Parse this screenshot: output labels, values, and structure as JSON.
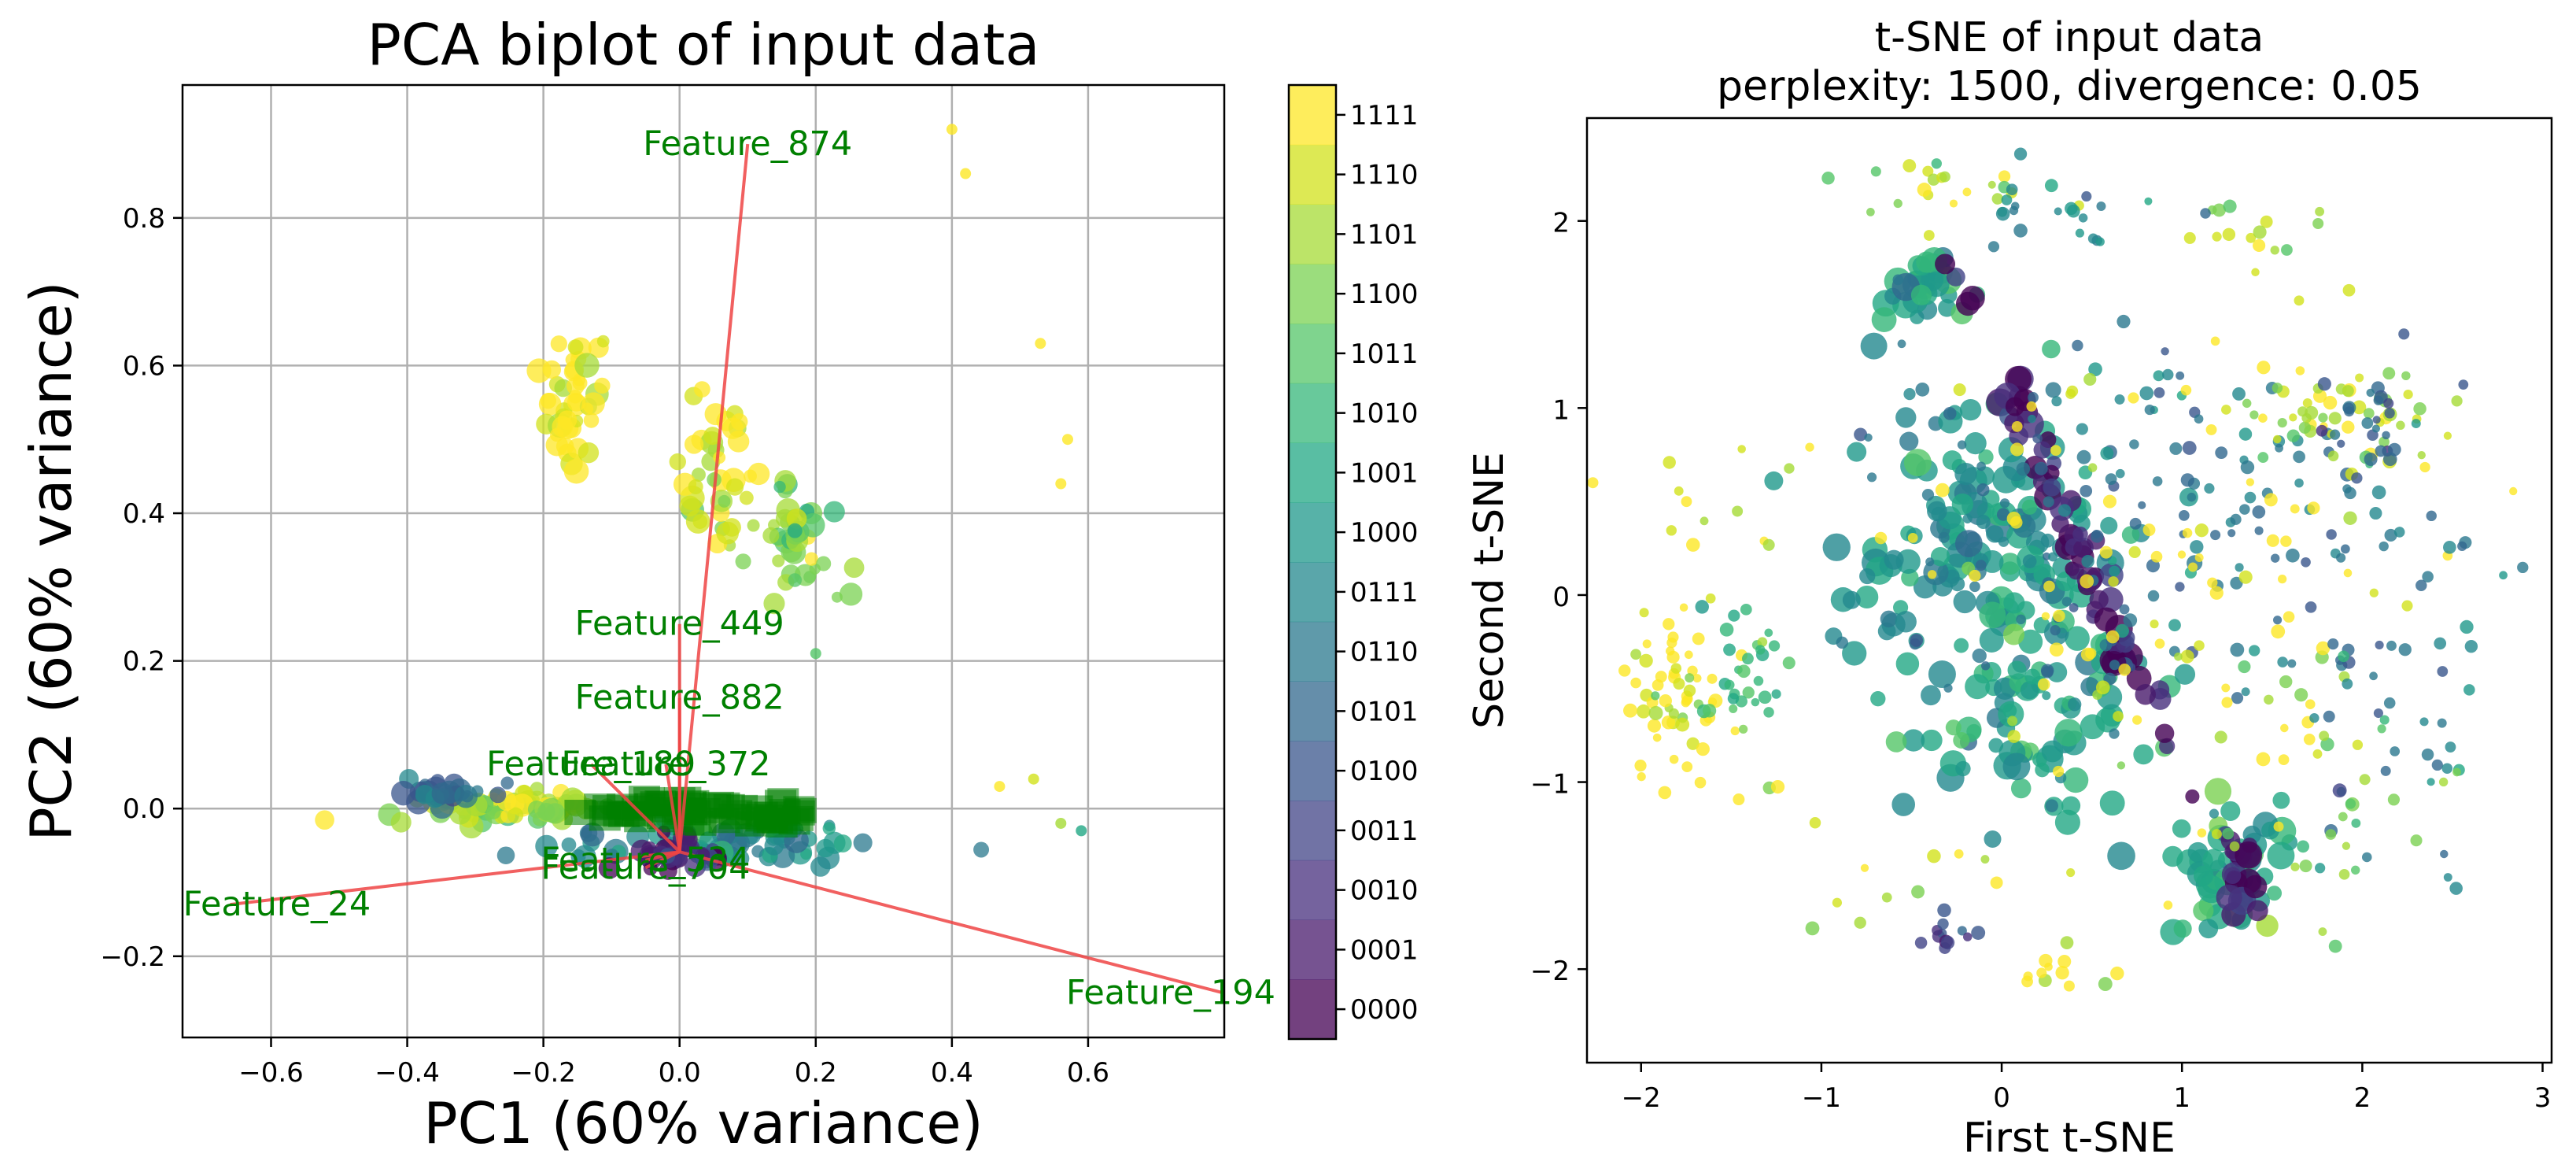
{
  "chart_data": [
    {
      "type": "scatter",
      "subtype": "pca-biplot",
      "title": "PCA biplot of input data",
      "xlabel": "PC1 (60% variance)",
      "ylabel": "PC2 (60% variance)",
      "xlim": [
        -0.73,
        0.8
      ],
      "ylim": [
        -0.31,
        0.98
      ],
      "xticks": [
        -0.6,
        -0.4,
        -0.2,
        0.0,
        0.2,
        0.4,
        0.6
      ],
      "xtick_labels": [
        "−0.6",
        "−0.4",
        "−0.2",
        "0.0",
        "0.2",
        "0.4",
        "0.6"
      ],
      "yticks": [
        -0.2,
        0.0,
        0.2,
        0.4,
        0.6,
        0.8
      ],
      "ytick_labels": [
        "−0.2",
        "0.0",
        "0.2",
        "0.4",
        "0.6",
        "0.8"
      ],
      "grid": true,
      "loadings": [
        {
          "name": "Feature_874",
          "x": 0.1,
          "y": 0.9
        },
        {
          "name": "Feature_24",
          "x": -0.66,
          "y": -0.13
        },
        {
          "name": "Feature_194",
          "x": 0.8,
          "y": -0.25
        },
        {
          "name": "Feature_449",
          "x": 0.0,
          "y": 0.25
        },
        {
          "name": "Feature_882",
          "x": 0.0,
          "y": 0.15
        },
        {
          "name": "Feature_189",
          "x": -0.13,
          "y": 0.06
        },
        {
          "name": "Feature_372",
          "x": -0.02,
          "y": 0.06
        },
        {
          "name": "Feature_534",
          "x": -0.05,
          "y": -0.07
        },
        {
          "name": "Feature_704",
          "x": -0.05,
          "y": -0.08
        }
      ],
      "clusters": [
        {
          "cx": -0.15,
          "cy": 0.56,
          "sx": 0.025,
          "sy": 0.05,
          "n": 45,
          "cls": 15
        },
        {
          "cx": 0.05,
          "cy": 0.45,
          "sx": 0.025,
          "sy": 0.05,
          "n": 40,
          "cls": 14
        },
        {
          "cx": 0.17,
          "cy": 0.37,
          "sx": 0.03,
          "sy": 0.04,
          "n": 45,
          "cls": 12
        },
        {
          "cx": -0.25,
          "cy": 0.0,
          "sx": 0.08,
          "sy": 0.01,
          "n": 70,
          "cls": 13
        },
        {
          "cx": 0.05,
          "cy": -0.05,
          "sx": 0.12,
          "sy": 0.015,
          "n": 80,
          "cls": 7
        },
        {
          "cx": -0.02,
          "cy": -0.06,
          "sx": 0.05,
          "sy": 0.01,
          "n": 30,
          "cls": 1
        },
        {
          "cx": -0.35,
          "cy": 0.02,
          "sx": 0.04,
          "sy": 0.01,
          "n": 30,
          "cls": 5
        }
      ],
      "outliers": [
        {
          "x": 0.4,
          "y": 0.92,
          "cls": 15
        },
        {
          "x": 0.42,
          "y": 0.86,
          "cls": 15
        },
        {
          "x": 0.53,
          "y": 0.63,
          "cls": 15
        },
        {
          "x": 0.57,
          "y": 0.5,
          "cls": 15
        },
        {
          "x": 0.56,
          "y": 0.44,
          "cls": 15
        },
        {
          "x": 0.47,
          "y": 0.03,
          "cls": 15
        },
        {
          "x": 0.52,
          "y": 0.04,
          "cls": 14
        },
        {
          "x": 0.56,
          "y": -0.02,
          "cls": 13
        },
        {
          "x": 0.59,
          "y": -0.03,
          "cls": 9
        },
        {
          "x": 0.2,
          "y": 0.21,
          "cls": 11
        }
      ],
      "colorbar": {
        "labels": [
          "0000",
          "0001",
          "0010",
          "0011",
          "0100",
          "0101",
          "0110",
          "0111",
          "1000",
          "1001",
          "1010",
          "1011",
          "1100",
          "1101",
          "1110",
          "1111"
        ]
      }
    },
    {
      "type": "scatter",
      "subtype": "tsne",
      "title_line1": "t-SNE of input data",
      "title_line2": "perplexity: 1500, divergence: 0.05",
      "xlabel": "First t-SNE",
      "ylabel": "Second t-SNE",
      "xlim": [
        -2.3,
        3.05
      ],
      "ylim": [
        -2.5,
        2.55
      ],
      "xticks": [
        -2,
        -1,
        0,
        1,
        2,
        3
      ],
      "xtick_labels": [
        "−2",
        "−1",
        "0",
        "1",
        "2",
        "3"
      ],
      "yticks": [
        -2,
        -1,
        0,
        1,
        2
      ],
      "ytick_labels": [
        "−2",
        "−1",
        "0",
        "1",
        "2"
      ],
      "grid": false,
      "clusters": [
        {
          "cx": -0.45,
          "cy": 1.65,
          "sx": 0.15,
          "sy": 0.15,
          "n": 30,
          "cls": 9
        },
        {
          "cx": -0.3,
          "cy": 2.2,
          "sx": 0.35,
          "sy": 0.08,
          "n": 20,
          "cls": 14
        },
        {
          "cx": 0.2,
          "cy": 2.05,
          "sx": 0.3,
          "sy": 0.15,
          "n": 20,
          "cls": 7
        },
        {
          "cx": 1.3,
          "cy": 1.9,
          "sx": 0.3,
          "sy": 0.12,
          "n": 15,
          "cls": 13
        },
        {
          "cx": -1.8,
          "cy": -0.5,
          "sx": 0.15,
          "sy": 0.25,
          "n": 60,
          "cls": 15
        },
        {
          "cx": -1.4,
          "cy": -0.4,
          "sx": 0.1,
          "sy": 0.2,
          "n": 30,
          "cls": 10
        },
        {
          "cx": -1.6,
          "cy": 0.3,
          "sx": 0.35,
          "sy": 0.3,
          "n": 15,
          "cls": 14
        },
        {
          "cx": -0.1,
          "cy": 0.2,
          "sx": 0.35,
          "sy": 0.45,
          "n": 160,
          "cls": 8
        },
        {
          "cx": 0.25,
          "cy": -0.7,
          "sx": 0.35,
          "sy": 0.3,
          "n": 60,
          "cls": 9
        },
        {
          "cx": 0.4,
          "cy": 0.3,
          "sx": 0.12,
          "sy": 0.55,
          "n": 70,
          "cls": 1
        },
        {
          "cx": 1.25,
          "cy": -1.5,
          "sx": 0.15,
          "sy": 0.2,
          "n": 50,
          "cls": 9
        },
        {
          "cx": 1.3,
          "cy": -1.5,
          "sx": 0.08,
          "sy": 0.15,
          "n": 20,
          "cls": 1
        },
        {
          "cx": 0.9,
          "cy": 0.4,
          "sx": 0.7,
          "sy": 0.6,
          "n": 170,
          "cls": 6
        },
        {
          "cx": 1.0,
          "cy": 0.2,
          "sx": 0.7,
          "sy": 0.7,
          "n": 100,
          "cls": 15
        },
        {
          "cx": 1.9,
          "cy": 0.95,
          "sx": 0.25,
          "sy": 0.12,
          "n": 50,
          "cls": 13
        },
        {
          "cx": 2.05,
          "cy": 0.9,
          "sx": 0.15,
          "sy": 0.15,
          "n": 25,
          "cls": 5
        },
        {
          "cx": 2.3,
          "cy": -0.6,
          "sx": 0.25,
          "sy": 0.5,
          "n": 40,
          "cls": 6
        },
        {
          "cx": -0.25,
          "cy": -1.8,
          "sx": 0.08,
          "sy": 0.05,
          "n": 12,
          "cls": 3
        },
        {
          "cx": 0.35,
          "cy": -2.05,
          "sx": 0.15,
          "sy": 0.08,
          "n": 12,
          "cls": 15
        },
        {
          "cx": -0.5,
          "cy": -1.5,
          "sx": 0.4,
          "sy": 0.25,
          "n": 15,
          "cls": 14
        },
        {
          "cx": 1.8,
          "cy": -1.0,
          "sx": 0.35,
          "sy": 0.4,
          "n": 30,
          "cls": 12
        }
      ]
    }
  ]
}
